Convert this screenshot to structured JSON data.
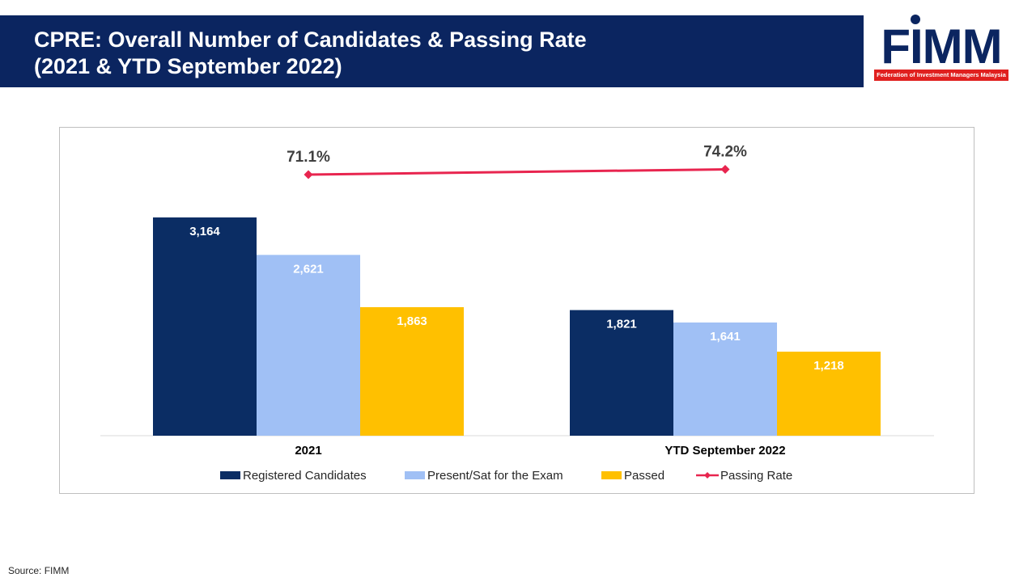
{
  "header": {
    "title_line1": "CPRE: Overall Number of Candidates & Passing Rate",
    "title_line2": "(2021 & YTD September 2022)"
  },
  "logo": {
    "word": "FIMM",
    "tagline": "Federation of Investment Managers Malaysia",
    "color": "#0b2560",
    "tag_color": "#e0201f"
  },
  "chart_data": {
    "type": "bar",
    "categories": [
      "2021",
      "YTD September 2022"
    ],
    "series": [
      {
        "name": "Registered Candidates",
        "color": "#0b2d64",
        "values": [
          3164,
          1821
        ],
        "labels": [
          "3,164",
          "1,821"
        ]
      },
      {
        "name": "Present/Sat for the Exam",
        "color": "#a0c0f5",
        "values": [
          2621,
          1641
        ],
        "labels": [
          "2,621",
          "1,641"
        ]
      },
      {
        "name": "Passed",
        "color": "#ffc000",
        "values": [
          1863,
          1218
        ],
        "labels": [
          "1,863",
          "1,218"
        ]
      }
    ],
    "line_series": {
      "name": "Passing Rate",
      "color": "#e8254f",
      "values": [
        71.1,
        74.2
      ],
      "labels": [
        "71.1%",
        "74.2%"
      ]
    },
    "ylim": [
      0,
      4500
    ],
    "legend_position": "bottom",
    "grid": false
  },
  "footer": {
    "source": "Source: FIMM"
  }
}
